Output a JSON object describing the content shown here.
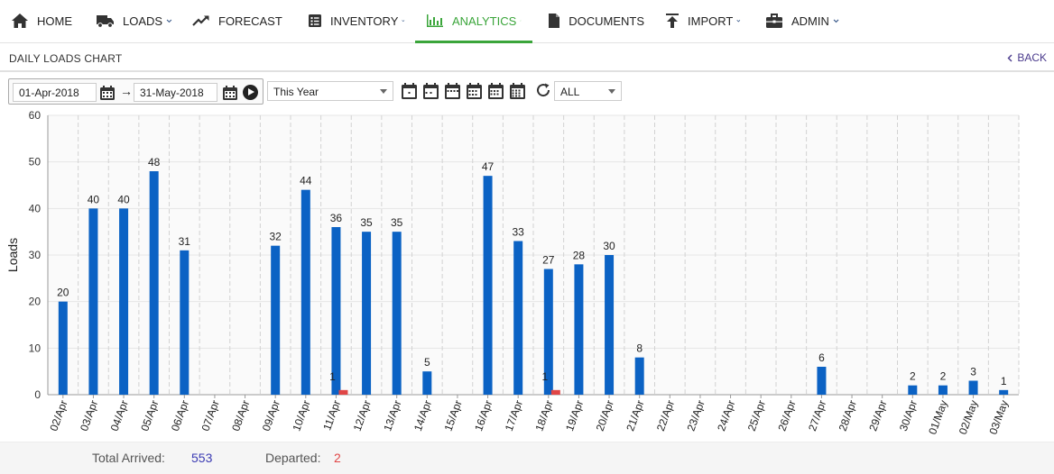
{
  "nav": {
    "items": [
      {
        "label": "HOME",
        "icon": "home-icon",
        "dropdown": false
      },
      {
        "label": "LOADS",
        "icon": "truck-icon",
        "dropdown": true
      },
      {
        "label": "FORECAST",
        "icon": "trend-icon",
        "dropdown": true
      },
      {
        "label": "INVENTORY",
        "icon": "inventory-icon",
        "dropdown": true
      },
      {
        "label": "ANALYTICS",
        "icon": "bar-chart-icon",
        "dropdown": true,
        "active": true
      },
      {
        "label": "DOCUMENTS",
        "icon": "document-icon",
        "dropdown": false
      },
      {
        "label": "IMPORT",
        "icon": "import-icon",
        "dropdown": true
      },
      {
        "label": "ADMIN",
        "icon": "briefcase-icon",
        "dropdown": true
      }
    ],
    "active_color": "#3aa53a"
  },
  "subheader": {
    "title": "DAILY LOADS CHART",
    "back_label": "BACK"
  },
  "toolbar": {
    "date_from": "01-Apr-2018",
    "date_to": "31-May-2018",
    "period_select": "This Year",
    "filter_select": "ALL"
  },
  "chart_data": {
    "type": "bar",
    "ylabel": "Loads",
    "ylim": [
      0,
      60
    ],
    "yticks": [
      0,
      10,
      20,
      30,
      40,
      50,
      60
    ],
    "categories": [
      "02/Apr",
      "03/Apr",
      "04/Apr",
      "05/Apr",
      "06/Apr",
      "07/Apr",
      "08/Apr",
      "09/Apr",
      "10/Apr",
      "11/Apr",
      "12/Apr",
      "13/Apr",
      "14/Apr",
      "15/Apr",
      "16/Apr",
      "17/Apr",
      "18/Apr",
      "19/Apr",
      "20/Apr",
      "21/Apr",
      "22/Apr",
      "23/Apr",
      "24/Apr",
      "25/Apr",
      "26/Apr",
      "27/Apr",
      "28/Apr",
      "29/Apr",
      "30/Apr",
      "01/May",
      "02/May",
      "03/May"
    ],
    "series": [
      {
        "color": "#0b62c4",
        "values": [
          20,
          40,
          40,
          48,
          31,
          0,
          0,
          32,
          44,
          36,
          35,
          35,
          5,
          0,
          47,
          33,
          27,
          28,
          30,
          8,
          0,
          0,
          0,
          0,
          0,
          6,
          0,
          0,
          2,
          2,
          3,
          1
        ]
      },
      {
        "color": "#e04646",
        "values": [
          0,
          0,
          0,
          0,
          0,
          0,
          0,
          0,
          0,
          1,
          0,
          0,
          0,
          0,
          0,
          0,
          1,
          0,
          0,
          0,
          0,
          0,
          0,
          0,
          0,
          0,
          0,
          0,
          0,
          0,
          0,
          0
        ]
      }
    ],
    "grid": true
  },
  "footer": {
    "arrived_label": "Total Arrived:",
    "arrived_value": "553",
    "departed_label": "Departed:",
    "departed_value": "2"
  }
}
